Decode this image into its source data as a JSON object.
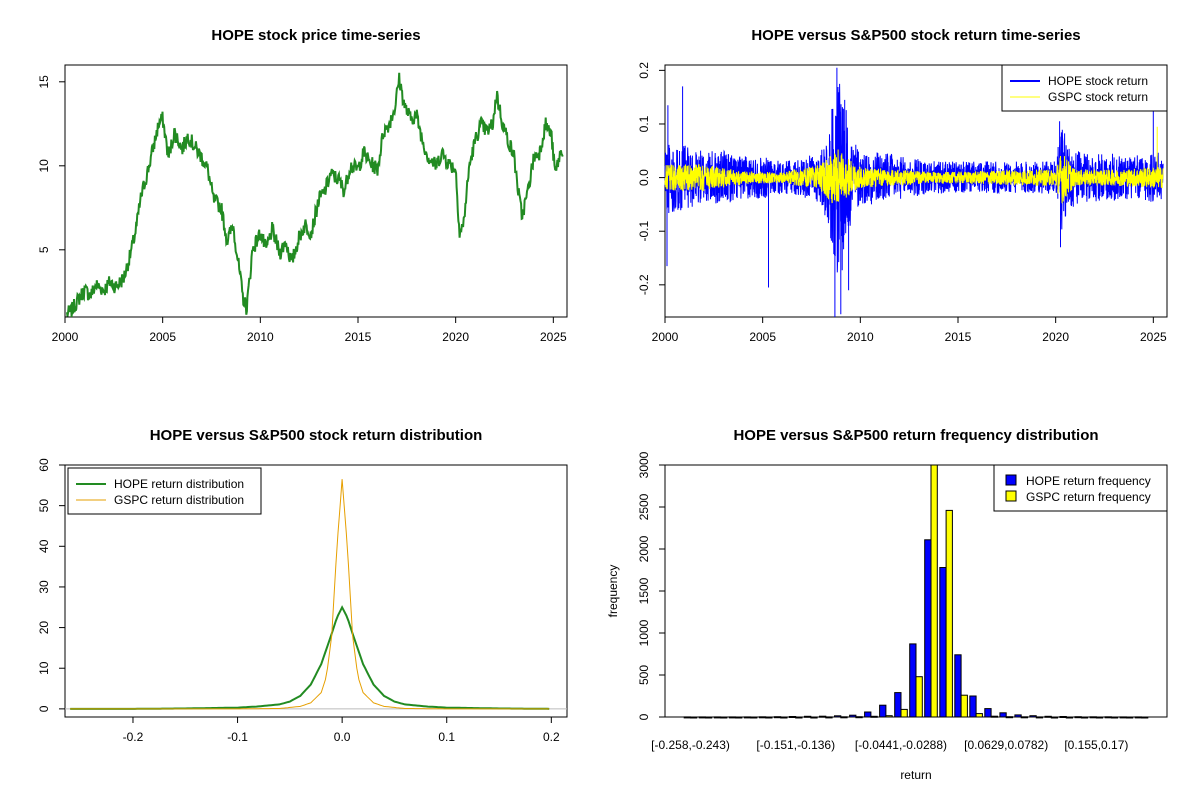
{
  "chart_data": [
    {
      "type": "line",
      "title": "HOPE stock price time-series",
      "xlabel": "",
      "ylabel": "",
      "xlim": [
        2000,
        2025.7
      ],
      "ylim": [
        1,
        16
      ],
      "xticks": [
        2000,
        2005,
        2010,
        2015,
        2020,
        2025
      ],
      "yticks": [
        5,
        10,
        15
      ],
      "color": "#228B22",
      "series": [
        {
          "x": [
            2000.1,
            2000.3,
            2000.6,
            2001.0,
            2001.3,
            2001.6,
            2002.0,
            2002.3,
            2002.6,
            2003.0,
            2003.3,
            2003.6,
            2003.9,
            2004.2,
            2004.5,
            2004.8,
            2005.0,
            2005.3,
            2005.6,
            2006.0,
            2006.3,
            2006.6,
            2007.0,
            2007.3,
            2007.6,
            2008.0,
            2008.3,
            2008.6,
            2008.9,
            2009.1,
            2009.3,
            2009.6,
            2010.0,
            2010.3,
            2010.6,
            2011.0,
            2011.3,
            2011.6,
            2012.0,
            2012.3,
            2012.6,
            2013.0,
            2013.3,
            2013.6,
            2014.0,
            2014.3,
            2014.6,
            2015.0,
            2015.3,
            2015.6,
            2016.0,
            2016.3,
            2016.6,
            2016.9,
            2017.1,
            2017.4,
            2017.7,
            2018.0,
            2018.3,
            2018.6,
            2019.0,
            2019.3,
            2019.6,
            2020.0,
            2020.2,
            2020.4,
            2020.7,
            2021.0,
            2021.3,
            2021.6,
            2021.9,
            2022.1,
            2022.4,
            2022.7,
            2023.0,
            2023.2,
            2023.4,
            2023.7,
            2024.0,
            2024.3,
            2024.6,
            2024.9,
            2025.1,
            2025.3,
            2025.5
          ],
          "y": [
            1.2,
            1.3,
            1.9,
            2.6,
            2.3,
            2.9,
            2.6,
            3.1,
            2.8,
            3.3,
            4.5,
            6.0,
            8.2,
            9.5,
            11.0,
            12.5,
            12.8,
            10.5,
            12.0,
            11.0,
            11.8,
            11.2,
            10.5,
            9.8,
            8.0,
            7.5,
            5.5,
            6.5,
            4.0,
            2.2,
            1.5,
            5.0,
            6.0,
            5.0,
            6.2,
            4.8,
            5.5,
            4.2,
            5.8,
            6.5,
            6.0,
            8.0,
            8.5,
            9.5,
            9.2,
            8.5,
            10.0,
            9.8,
            10.8,
            10.2,
            9.8,
            12.0,
            12.5,
            13.5,
            15.2,
            13.5,
            12.8,
            13.0,
            11.5,
            10.5,
            10.0,
            10.8,
            10.2,
            9.8,
            6.0,
            6.5,
            10.0,
            11.5,
            12.5,
            12.0,
            12.5,
            14.3,
            12.5,
            11.5,
            10.5,
            8.5,
            7.0,
            8.5,
            10.5,
            10.8,
            12.5,
            11.8,
            9.5,
            10.5,
            11.0
          ]
        }
      ]
    },
    {
      "type": "line",
      "title": "HOPE versus S&P500 stock return time-series",
      "xlabel": "",
      "ylabel": "",
      "xlim": [
        2000,
        2025.7
      ],
      "ylim": [
        -0.26,
        0.21
      ],
      "xticks": [
        2000,
        2005,
        2010,
        2015,
        2020,
        2025
      ],
      "yticks": [
        -0.2,
        -0.1,
        0.0,
        0.1,
        0.2
      ],
      "ytick_labels": [
        "-0.2",
        "-0.1",
        "0.0",
        "0.1",
        "0.2"
      ],
      "legend": "top-right",
      "series": [
        {
          "name": "HOPE stock return",
          "color": "#0000FF",
          "x": [
            2000,
            2001,
            2002,
            2003,
            2004,
            2005,
            2006,
            2007,
            2008,
            2008.5,
            2008.8,
            2009.0,
            2009.3,
            2009.6,
            2010,
            2011,
            2012,
            2013,
            2014,
            2015,
            2016,
            2017,
            2018,
            2019,
            2020,
            2020.3,
            2020.6,
            2021,
            2022,
            2023,
            2024,
            2025,
            2025.5
          ],
          "amp": [
            0.07,
            0.06,
            0.05,
            0.05,
            0.04,
            0.04,
            0.03,
            0.035,
            0.05,
            0.12,
            0.18,
            0.2,
            0.12,
            0.08,
            0.05,
            0.05,
            0.04,
            0.035,
            0.03,
            0.03,
            0.03,
            0.03,
            0.03,
            0.03,
            0.03,
            0.1,
            0.07,
            0.05,
            0.045,
            0.045,
            0.04,
            0.05,
            0.045
          ],
          "spikes": [
            [
              2000.1,
              -0.165
            ],
            [
              2000.15,
              0.135
            ],
            [
              2000.9,
              0.17
            ],
            [
              2005.3,
              -0.205
            ],
            [
              2008.7,
              -0.26
            ],
            [
              2008.8,
              0.205
            ],
            [
              2009.0,
              -0.255
            ],
            [
              2009.2,
              0.145
            ],
            [
              2009.4,
              -0.21
            ],
            [
              2020.2,
              0.105
            ],
            [
              2020.25,
              -0.13
            ],
            [
              2025.0,
              0.125
            ]
          ]
        },
        {
          "name": "GSPC stock return",
          "color": "#FFFF00",
          "x": [
            2000,
            2002,
            2004,
            2006,
            2008,
            2008.8,
            2009.2,
            2010,
            2012,
            2014,
            2016,
            2018,
            2020,
            2020.3,
            2021,
            2023,
            2025,
            2025.5
          ],
          "amp": [
            0.025,
            0.025,
            0.012,
            0.01,
            0.025,
            0.06,
            0.04,
            0.02,
            0.015,
            0.01,
            0.012,
            0.015,
            0.015,
            0.05,
            0.015,
            0.015,
            0.02,
            0.02
          ],
          "spikes": [
            [
              2025.2,
              0.095
            ]
          ]
        }
      ]
    },
    {
      "type": "line",
      "title": "HOPE versus S&P500 stock return distribution",
      "xlabel": "",
      "ylabel": "",
      "xlim": [
        -0.265,
        0.215
      ],
      "ylim": [
        -2,
        60
      ],
      "xticks": [
        -0.2,
        -0.1,
        0.0,
        0.1,
        0.2
      ],
      "xtick_labels": [
        "-0.2",
        "-0.1",
        "0.0",
        "0.1",
        "0.2"
      ],
      "yticks": [
        0,
        10,
        20,
        30,
        40,
        50,
        60
      ],
      "legend": "top-left",
      "series": [
        {
          "name": "HOPE return distribution",
          "color": "#228B22",
          "x": [
            -0.26,
            -0.2,
            -0.15,
            -0.1,
            -0.08,
            -0.06,
            -0.05,
            -0.04,
            -0.03,
            -0.02,
            -0.01,
            -0.005,
            0.0,
            0.005,
            0.01,
            0.02,
            0.03,
            0.04,
            0.05,
            0.06,
            0.08,
            0.1,
            0.15,
            0.2
          ],
          "y": [
            0,
            0,
            0.1,
            0.3,
            0.6,
            1.1,
            1.8,
            3.2,
            6.0,
            11.0,
            18.5,
            22.5,
            25.0,
            22.5,
            18.5,
            11.0,
            6.0,
            3.2,
            1.8,
            1.1,
            0.6,
            0.3,
            0.1,
            0
          ]
        },
        {
          "name": "GSPC return distribution",
          "color": "#E69F00",
          "x": [
            -0.26,
            -0.1,
            -0.06,
            -0.04,
            -0.03,
            -0.02,
            -0.015,
            -0.01,
            -0.005,
            0.0,
            0.005,
            0.01,
            0.015,
            0.02,
            0.03,
            0.04,
            0.06,
            0.1,
            0.2
          ],
          "y": [
            0,
            0,
            0.1,
            0.6,
            1.5,
            4.0,
            8.0,
            18.0,
            40.0,
            56.5,
            40.0,
            18.0,
            8.0,
            4.0,
            1.5,
            0.6,
            0.1,
            0,
            0
          ]
        }
      ]
    },
    {
      "type": "bar",
      "title": "HOPE versus S&P500 return frequency distribution",
      "xlabel": "return",
      "ylabel": "frequency",
      "ylim": [
        0,
        3000
      ],
      "yticks": [
        0,
        500,
        1000,
        1500,
        2000,
        2500,
        3000
      ],
      "legend": "top-right",
      "category_tick_labels": [
        "[-0.258,-0.243)",
        "[-0.151,-0.136)",
        "[-0.0441,-0.0288)",
        "[0.0629,0.0782)",
        "[0.155,0.17)"
      ],
      "category_tick_index": [
        0,
        7,
        14,
        21,
        27
      ],
      "series": [
        {
          "name": "HOPE return frequency",
          "color": "#0000FF",
          "values": [
            1,
            1,
            1,
            1,
            1,
            2,
            3,
            6,
            8,
            10,
            14,
            22,
            60,
            140,
            290,
            870,
            2110,
            1780,
            740,
            250,
            100,
            50,
            25,
            15,
            8,
            6,
            4,
            2,
            2,
            1,
            1
          ]
        },
        {
          "name": "GSPC return frequency",
          "color": "#FFFF00",
          "values": [
            0,
            0,
            0,
            0,
            0,
            0,
            0,
            0,
            0,
            1,
            2,
            4,
            8,
            15,
            90,
            480,
            3020,
            2460,
            260,
            40,
            10,
            4,
            2,
            1,
            0,
            0,
            0,
            0,
            0,
            0,
            0
          ]
        }
      ]
    }
  ]
}
